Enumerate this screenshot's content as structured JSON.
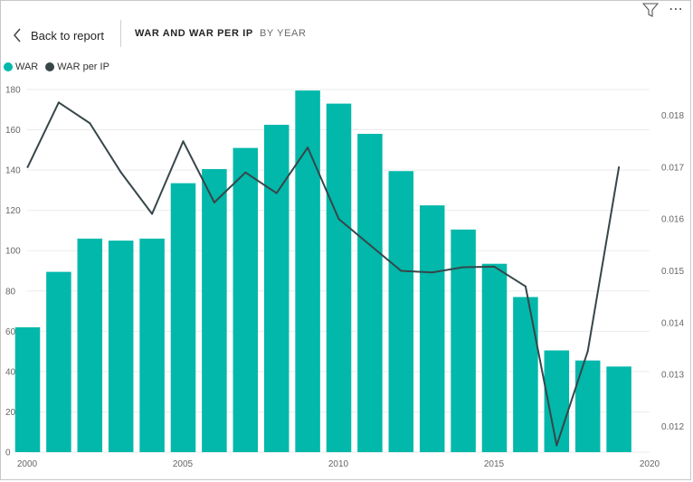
{
  "header": {
    "back_label": "Back to report",
    "title": "WAR AND WAR PER IP",
    "subtitle": "BY YEAR"
  },
  "icons": {
    "back": "chevron-left-icon",
    "filter": "filter-icon",
    "more": "more-options-icon"
  },
  "colors": {
    "bar": "#01B8AA",
    "line": "#374649"
  },
  "chart_data": {
    "type": "bar",
    "legend_position": "top-left",
    "grid": true,
    "x": [
      2000,
      2001,
      2002,
      2003,
      2004,
      2005,
      2006,
      2007,
      2008,
      2009,
      2010,
      2011,
      2012,
      2013,
      2014,
      2015,
      2016,
      2017,
      2018,
      2019
    ],
    "x_ticks": [
      "2000",
      "2005",
      "2010",
      "2015",
      "2020"
    ],
    "xlim": [
      2000,
      2020
    ],
    "y_ticks": [
      "0",
      "20",
      "40",
      "60",
      "80",
      "100",
      "120",
      "140",
      "160",
      "180"
    ],
    "ylim": [
      0,
      180
    ],
    "y2_ticks": [
      "0.012",
      "0.013",
      "0.014",
      "0.015",
      "0.016",
      "0.017",
      "0.018"
    ],
    "y2lim": [
      0.0115,
      0.0185
    ],
    "series": [
      {
        "name": "WAR",
        "type": "bar",
        "axis": "left",
        "values": [
          62,
          89.5,
          106,
          105,
          106,
          133.5,
          140.5,
          151,
          162.5,
          179.5,
          173,
          158,
          139.5,
          122.5,
          110.5,
          93.5,
          77,
          50.5,
          45.5,
          42.5
        ]
      },
      {
        "name": "WAR per IP",
        "type": "line",
        "axis": "right",
        "values": [
          0.017,
          0.01825,
          0.01785,
          0.0169,
          0.0161,
          0.0175,
          0.01632,
          0.0169,
          0.0165,
          0.01738,
          0.016,
          0.0155,
          0.015,
          0.01497,
          0.01507,
          0.01508,
          0.0147,
          0.01163,
          0.01345,
          0.017
        ]
      }
    ]
  }
}
